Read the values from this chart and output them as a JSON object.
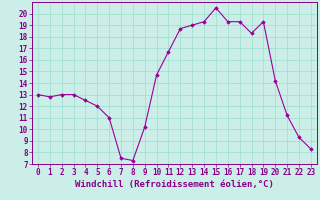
{
  "x": [
    0,
    1,
    2,
    3,
    4,
    5,
    6,
    7,
    8,
    9,
    10,
    11,
    12,
    13,
    14,
    15,
    16,
    17,
    18,
    19,
    20,
    21,
    22,
    23
  ],
  "y": [
    13.0,
    12.8,
    13.0,
    13.0,
    12.5,
    12.0,
    11.0,
    7.5,
    7.3,
    10.2,
    14.7,
    16.7,
    18.7,
    19.0,
    19.3,
    20.5,
    19.3,
    19.3,
    18.3,
    19.3,
    14.2,
    11.2,
    9.3,
    8.3
  ],
  "line_color": "#990099",
  "marker": "D",
  "marker_size": 1.8,
  "bg_color": "#cceee8",
  "grid_color": "#99ddcc",
  "xlabel": "Windchill (Refroidissement éolien,°C)",
  "ylim": [
    7,
    21
  ],
  "xlim": [
    -0.5,
    23.5
  ],
  "yticks": [
    7,
    8,
    9,
    10,
    11,
    12,
    13,
    14,
    15,
    16,
    17,
    18,
    19,
    20
  ],
  "xticks": [
    0,
    1,
    2,
    3,
    4,
    5,
    6,
    7,
    8,
    9,
    10,
    11,
    12,
    13,
    14,
    15,
    16,
    17,
    18,
    19,
    20,
    21,
    22,
    23
  ],
  "tick_fontsize": 5.5,
  "xlabel_fontsize": 6.5,
  "axis_text_color": "#880088",
  "spine_color": "#880088"
}
